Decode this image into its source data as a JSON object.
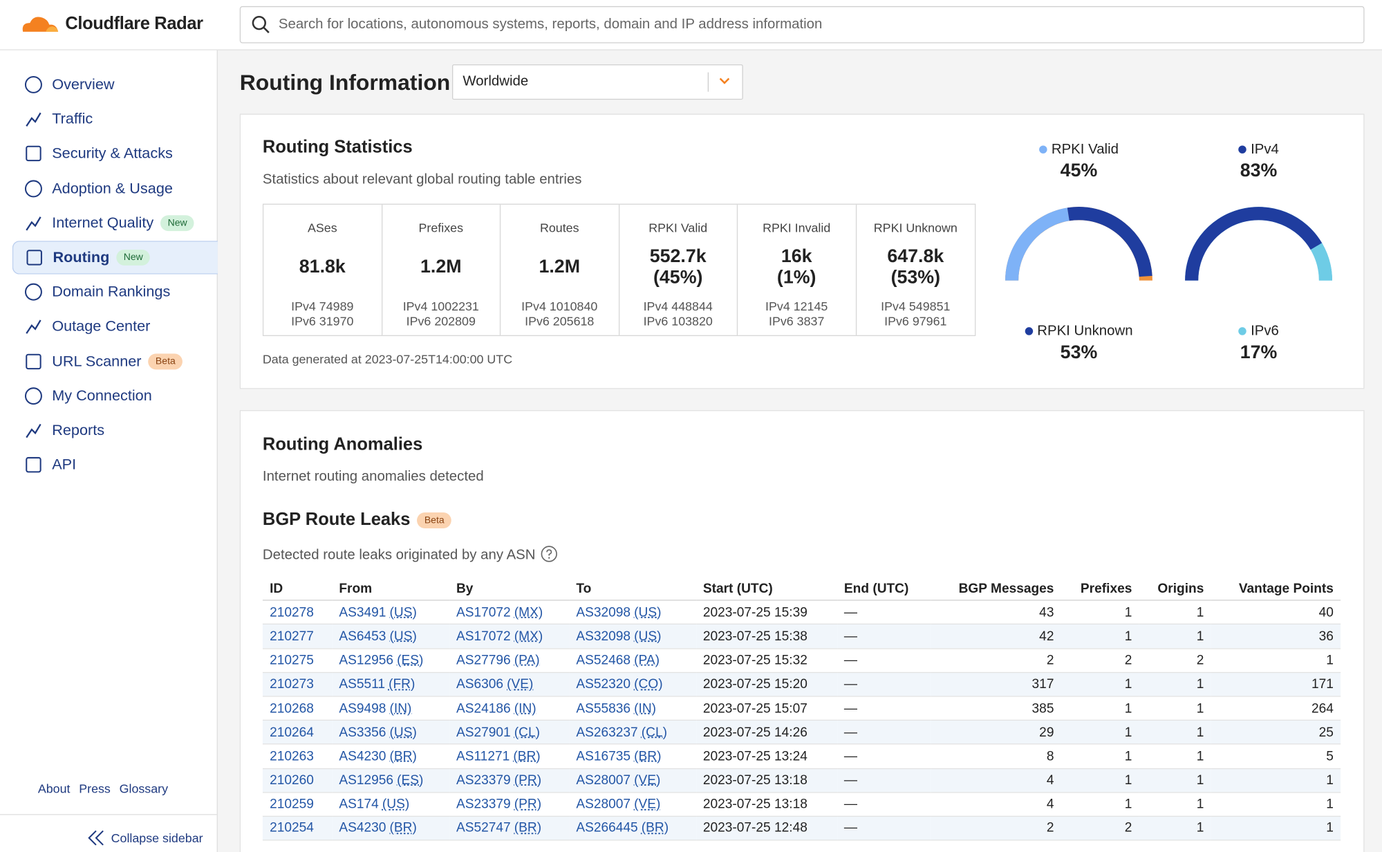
{
  "header": {
    "brand": "Cloudflare Radar",
    "search_placeholder": "Search for locations, autonomous systems, reports, domain and IP address information"
  },
  "sidebar": {
    "items": [
      {
        "label": "Overview"
      },
      {
        "label": "Traffic"
      },
      {
        "label": "Security & Attacks"
      },
      {
        "label": "Adoption & Usage"
      },
      {
        "label": "Internet Quality",
        "badge": "New"
      },
      {
        "label": "Routing",
        "badge": "New",
        "active": true
      },
      {
        "label": "Domain Rankings"
      },
      {
        "label": "Outage Center"
      },
      {
        "label": "URL Scanner",
        "badge": "Beta"
      },
      {
        "label": "My Connection"
      },
      {
        "label": "Reports"
      },
      {
        "label": "API"
      }
    ],
    "footer_links": [
      "About",
      "Press",
      "Glossary"
    ],
    "collapse": "Collapse sidebar"
  },
  "page": {
    "title": "Routing Information",
    "location": "Worldwide"
  },
  "stats": {
    "title": "Routing Statistics",
    "subtitle": "Statistics about relevant global routing table entries",
    "cells": [
      {
        "label": "ASes",
        "value": "81.8k",
        "ipv4": "IPv4 74989",
        "ipv6": "IPv6 31970"
      },
      {
        "label": "Prefixes",
        "value": "1.2M",
        "ipv4": "IPv4 1002231",
        "ipv6": "IPv6 202809"
      },
      {
        "label": "Routes",
        "value": "1.2M",
        "ipv4": "IPv4 1010840",
        "ipv6": "IPv6 205618"
      },
      {
        "label": "RPKI Valid",
        "value": "552.7k",
        "share": "(45%)",
        "ipv4": "IPv4 448844",
        "ipv6": "IPv6 103820"
      },
      {
        "label": "RPKI Invalid",
        "value": "16k",
        "share": "(1%)",
        "ipv4": "IPv4 12145",
        "ipv6": "IPv6 3837"
      },
      {
        "label": "RPKI Unknown",
        "value": "647.8k",
        "share": "(53%)",
        "ipv4": "IPv4 549851",
        "ipv6": "IPv6 97961"
      }
    ],
    "footnote": "Data generated at 2023-07-25T14:00:00 UTC",
    "gauges": [
      {
        "rest_color": "#f0923a",
        "segments": [
          {
            "name": "RPKI Valid",
            "color": "#7eb2f7",
            "share": {
              "value": 45,
              "label": "45%"
            }
          },
          {
            "name": "RPKI Unknown",
            "color": "#1f3d9f",
            "share": {
              "value": 53,
              "label": "53%"
            }
          }
        ]
      },
      {
        "rest_color": "#6ecce6",
        "segments": [
          {
            "name": "IPv4",
            "color": "#1f3d9f",
            "share": {
              "value": 83,
              "label": "83%"
            }
          },
          {
            "name": "IPv6",
            "color": "#6ecce6",
            "share": {
              "value": 17,
              "label": "17%"
            }
          }
        ]
      }
    ]
  },
  "anomalies": {
    "title": "Routing Anomalies",
    "subtitle": "Internet routing anomalies detected",
    "leaks_title": "BGP Route Leaks",
    "leaks_badge": "Beta",
    "leaks_description": "Detected route leaks originated by any ASN",
    "table": {
      "columns": [
        "ID",
        "From",
        "By",
        "To",
        "Start (UTC)",
        "End (UTC)",
        "BGP Messages",
        "Prefixes",
        "Origins",
        "Vantage Points"
      ],
      "rows": [
        [
          "210278",
          {
            "asn": "AS3491",
            "cc": "(US)"
          },
          {
            "asn": "AS17072",
            "cc": "(MX)"
          },
          {
            "asn": "AS32098",
            "cc": "(US)"
          },
          "2023-07-25 15:39",
          "—",
          43,
          1,
          1,
          40
        ],
        [
          "210277",
          {
            "asn": "AS6453",
            "cc": "(US)"
          },
          {
            "asn": "AS17072",
            "cc": "(MX)"
          },
          {
            "asn": "AS32098",
            "cc": "(US)"
          },
          "2023-07-25 15:38",
          "—",
          42,
          1,
          1,
          36
        ],
        [
          "210275",
          {
            "asn": "AS12956",
            "cc": "(ES)"
          },
          {
            "asn": "AS27796",
            "cc": "(PA)"
          },
          {
            "asn": "AS52468",
            "cc": "(PA)"
          },
          "2023-07-25 15:32",
          "—",
          2,
          2,
          2,
          1
        ],
        [
          "210273",
          {
            "asn": "AS5511",
            "cc": "(FR)"
          },
          {
            "asn": "AS6306",
            "cc": "(VE)"
          },
          {
            "asn": "AS52320",
            "cc": "(CO)"
          },
          "2023-07-25 15:20",
          "—",
          317,
          1,
          1,
          171
        ],
        [
          "210268",
          {
            "asn": "AS9498",
            "cc": "(IN)"
          },
          {
            "asn": "AS24186",
            "cc": "(IN)"
          },
          {
            "asn": "AS55836",
            "cc": "(IN)"
          },
          "2023-07-25 15:07",
          "—",
          385,
          1,
          1,
          264
        ],
        [
          "210264",
          {
            "asn": "AS3356",
            "cc": "(US)"
          },
          {
            "asn": "AS27901",
            "cc": "(CL)"
          },
          {
            "asn": "AS263237",
            "cc": "(CL)"
          },
          "2023-07-25 14:26",
          "—",
          29,
          1,
          1,
          25
        ],
        [
          "210263",
          {
            "asn": "AS4230",
            "cc": "(BR)"
          },
          {
            "asn": "AS11271",
            "cc": "(BR)"
          },
          {
            "asn": "AS16735",
            "cc": "(BR)"
          },
          "2023-07-25 13:24",
          "—",
          8,
          1,
          1,
          5
        ],
        [
          "210260",
          {
            "asn": "AS12956",
            "cc": "(ES)"
          },
          {
            "asn": "AS23379",
            "cc": "(PR)"
          },
          {
            "asn": "AS28007",
            "cc": "(VE)"
          },
          "2023-07-25 13:18",
          "—",
          4,
          1,
          1,
          1
        ],
        [
          "210259",
          {
            "asn": "AS174",
            "cc": "(US)"
          },
          {
            "asn": "AS23379",
            "cc": "(PR)"
          },
          {
            "asn": "AS28007",
            "cc": "(VE)"
          },
          "2023-07-25 13:18",
          "—",
          4,
          1,
          1,
          1
        ],
        [
          "210254",
          {
            "asn": "AS4230",
            "cc": "(BR)"
          },
          {
            "asn": "AS52747",
            "cc": "(BR)"
          },
          {
            "asn": "AS266445",
            "cc": "(BR)"
          },
          "2023-07-25 12:48",
          "—",
          2,
          2,
          1,
          1
        ]
      ]
    }
  }
}
